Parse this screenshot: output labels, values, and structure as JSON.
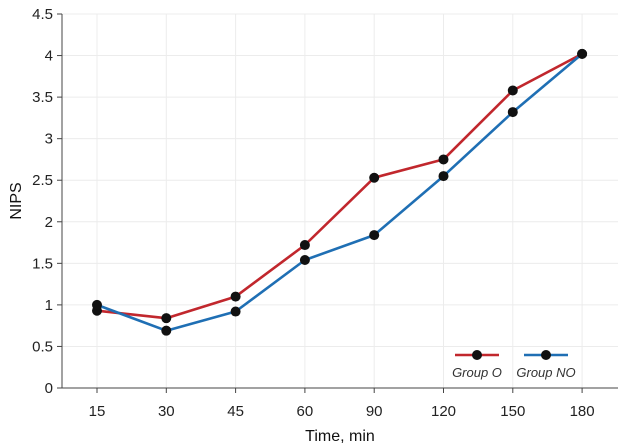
{
  "chart_data": {
    "type": "line",
    "title": "",
    "xlabel": "Time, min",
    "ylabel": "NIPS",
    "categories": [
      "15",
      "30",
      "45",
      "60",
      "90",
      "120",
      "150",
      "180"
    ],
    "ylim": [
      0,
      4.5
    ],
    "yticks": [
      "0",
      "0.5",
      "1",
      "1.5",
      "2",
      "2.5",
      "3",
      "3.5",
      "4",
      "4.5"
    ],
    "grid": true,
    "legend_position": "bottom-right",
    "series": [
      {
        "name": "Group O",
        "color": "#c1272d",
        "values": [
          0.93,
          0.84,
          1.1,
          1.72,
          2.53,
          2.75,
          3.58,
          4.02
        ]
      },
      {
        "name": "Group NO",
        "color": "#1f6fb4",
        "values": [
          1.0,
          0.69,
          0.92,
          1.54,
          1.84,
          2.55,
          3.32,
          4.02
        ]
      }
    ]
  }
}
